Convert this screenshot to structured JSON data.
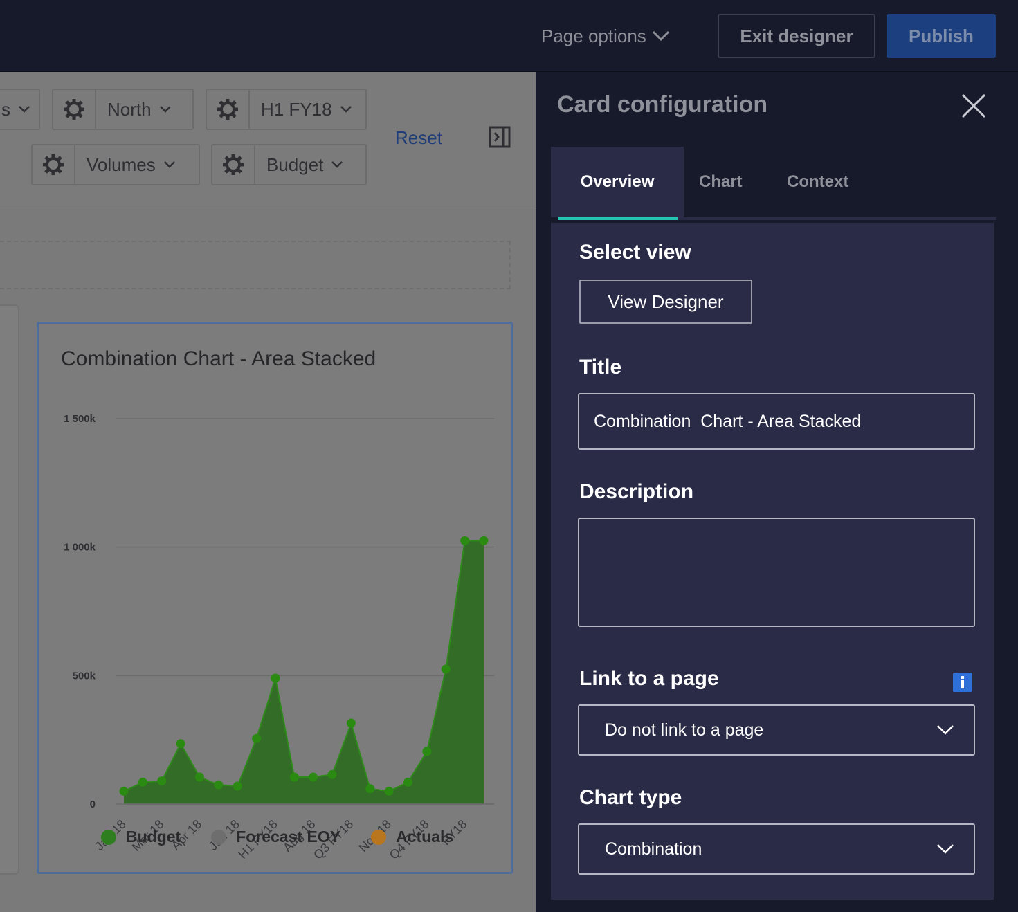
{
  "topbar": {
    "page_options_label": "Page options",
    "exit_label": "Exit designer",
    "publish_label": "Publish"
  },
  "filters": {
    "partial_label": "s",
    "region": "North",
    "period": "H1 FY18",
    "measure": "Volumes",
    "scenario": "Budget",
    "reset_label": "Reset"
  },
  "card": {
    "title": "Combination Chart - Area Stacked"
  },
  "chart_data": {
    "type": "area",
    "title": "Combination Chart - Area Stacked",
    "y_ticks": [
      "1 500k",
      "1 000k",
      "500k",
      "0"
    ],
    "ylim": [
      0,
      1500000
    ],
    "grid": true,
    "legend_position": "bottom",
    "x_tick_labels": [
      "Jan 18",
      "Mar 18",
      "Apr 18",
      "Jun 18",
      "H1 FY18",
      "Aug 18",
      "Q3 FY18",
      "Nov 18",
      "Q4 FY18",
      "FY18"
    ],
    "point_count": 20,
    "series": [
      {
        "name": "Budget",
        "color": "#2e7d1e",
        "values": [
          50000,
          85000,
          90000,
          235000,
          105000,
          75000,
          70000,
          255000,
          490000,
          105000,
          105000,
          115000,
          315000,
          60000,
          50000,
          85000,
          205000,
          525000,
          1025000,
          1025000
        ]
      },
      {
        "name": "Forecast EOY",
        "color": "#6e6e6e",
        "values": []
      },
      {
        "name": "Actuals",
        "color": "#b9761f",
        "values": []
      }
    ]
  },
  "config": {
    "title": "Card configuration",
    "tabs": [
      "Overview",
      "Chart",
      "Context"
    ],
    "select_view_label": "Select view",
    "view_designer_label": "View Designer",
    "title_label": "Title",
    "title_value": "Combination  Chart - Area Stacked",
    "description_label": "Description",
    "description_value": "",
    "link_label": "Link to a page",
    "link_value": "Do not link to a page",
    "chart_type_label": "Chart type",
    "chart_type_value": "Combination"
  },
  "colors": {
    "accent_teal": "#25c4b5",
    "publish_blue": "#1c3f80",
    "panel_bg": "#2a2b46",
    "info_blue": "#2e6fd8"
  }
}
